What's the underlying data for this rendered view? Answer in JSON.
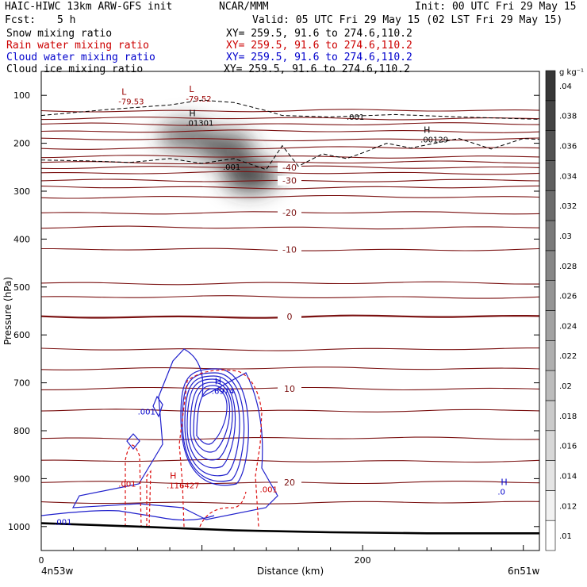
{
  "header": {
    "model": "HAIC-HIWC 13km ARW-GFS init",
    "center": "NCAR/MMM",
    "init": "Init: 00 UTC Fri 29 May 15",
    "fcst_label": "Fcst:",
    "fcst_value": "5 h",
    "valid": "Valid: 05 UTC Fri 29 May 15 (02 LST Fri 29 May 15)"
  },
  "fields": [
    {
      "name": "Snow mixing ratio",
      "xy": "XY= 259.5, 91.6 to 274.6,110.2",
      "color": "#000000"
    },
    {
      "name": "Rain water mixing ratio",
      "xy": "XY= 259.5, 91.6 to 274.6,110.2",
      "color": "#cc0000"
    },
    {
      "name": "Cloud water mixing ratio",
      "xy": "XY= 259.5, 91.6 to 274.6,110.2",
      "color": "#0000cc"
    },
    {
      "name": "Cloud ice mixing ratio",
      "xy": "XY= 259.5, 91.6 to 274.6,110.2",
      "color": "#000000"
    }
  ],
  "corners": {
    "left": "4n53w",
    "right": "6n51w"
  },
  "colorbar": {
    "unit": "g kg⁻¹",
    "labels": [
      ".01",
      ".012",
      ".014",
      ".016",
      ".018",
      ".02",
      ".022",
      ".024",
      ".026",
      ".028",
      ".03",
      ".032",
      ".034",
      ".036",
      ".038",
      ".04"
    ]
  },
  "chart_data": {
    "type": "heatmap",
    "title": "",
    "xlabel": "Distance (km)",
    "ylabel": "Pressure (hPa)",
    "xlim": [
      0,
      310
    ],
    "ylim": [
      1050,
      50
    ],
    "x_ticks": [
      0,
      200
    ],
    "y_ticks": [
      100,
      200,
      300,
      400,
      500,
      600,
      700,
      800,
      900,
      1000
    ],
    "temperature_isotherms": [
      {
        "value": -40,
        "label": "-40",
        "pressure": 250
      },
      {
        "value": -30,
        "label": "-30",
        "pressure": 278
      },
      {
        "value": -20,
        "label": "-20",
        "pressure": 345
      },
      {
        "value": -10,
        "label": "-10",
        "pressure": 422
      },
      {
        "value": 0,
        "label": "0",
        "pressure": 562
      },
      {
        "value": 10,
        "label": "10",
        "pressure": 712
      },
      {
        "value": 20,
        "label": "20",
        "pressure": 908
      }
    ],
    "extra_isotherm_pressures": [
      132,
      148,
      160,
      175,
      192,
      210,
      228,
      240,
      262,
      292,
      312,
      376,
      492,
      521,
      630,
      670,
      758,
      816,
      863,
      950
    ],
    "cloud_ice_shading": [
      {
        "x": 90,
        "pressure": 185,
        "value": 0.032
      },
      {
        "x": 115,
        "pressure": 210,
        "value": 0.036
      },
      {
        "x": 130,
        "pressure": 268,
        "value": 0.04
      }
    ],
    "snow_contour": {
      "level": ".001",
      "x": [
        0,
        30,
        55,
        80,
        100,
        120,
        140,
        150,
        160,
        175,
        190,
        200,
        215,
        230,
        260,
        280,
        300,
        310
      ],
      "pressure": [
        235,
        237,
        240,
        232,
        242,
        232,
        255,
        205,
        248,
        222,
        232,
        220,
        200,
        210,
        190,
        212,
        190,
        192
      ]
    },
    "tropopause_contour": {
      "level": ".001",
      "x": [
        0,
        40,
        80,
        100,
        120,
        140,
        150,
        180,
        220,
        260,
        310
      ],
      "pressure": [
        142,
        130,
        120,
        110,
        115,
        132,
        142,
        145,
        140,
        145,
        150
      ]
    },
    "extrema_labels": [
      {
        "kind": "L",
        "value": "-79.53",
        "x": 50,
        "pressure": 115,
        "color": "#990000"
      },
      {
        "kind": "L",
        "value": "-79.52",
        "x": 92,
        "pressure": 110,
        "color": "#990000"
      },
      {
        "kind": "H",
        "value": ".01301",
        "x": 92,
        "pressure": 160,
        "color": "#000000"
      },
      {
        "kind": "H",
        "value": ".00129",
        "x": 238,
        "pressure": 195,
        "color": "#000000"
      },
      {
        "kind": "",
        "value": ".001",
        "x": 115,
        "pressure": 252,
        "color": "#000000"
      },
      {
        "kind": "",
        "value": ".001",
        "x": 192,
        "pressure": 148,
        "color": "#000000"
      },
      {
        "kind": "H",
        "value": ".6974",
        "x": 108,
        "pressure": 720,
        "color": "#0000cc"
      },
      {
        "kind": "H",
        "value": ".116427",
        "x": 80,
        "pressure": 917,
        "color": "#cc0000"
      },
      {
        "kind": "H",
        "value": ".0",
        "x": 286,
        "pressure": 930,
        "color": "#0000cc"
      },
      {
        "kind": "",
        "value": ".001",
        "x": 62,
        "pressure": 763,
        "color": "#0000cc"
      },
      {
        "kind": "",
        "value": ".001",
        "x": 50,
        "pressure": 913,
        "color": "#cc0000"
      },
      {
        "kind": "",
        "value": ".001",
        "x": 138,
        "pressure": 925,
        "color": "#cc0000"
      },
      {
        "kind": "",
        "value": ".001",
        "x": 10,
        "pressure": 993,
        "color": "#0000cc"
      }
    ],
    "ground": {
      "x": [
        0,
        60,
        120,
        180,
        240,
        310
      ],
      "pressure": [
        993,
        1000,
        1008,
        1012,
        1014,
        1014
      ]
    }
  }
}
